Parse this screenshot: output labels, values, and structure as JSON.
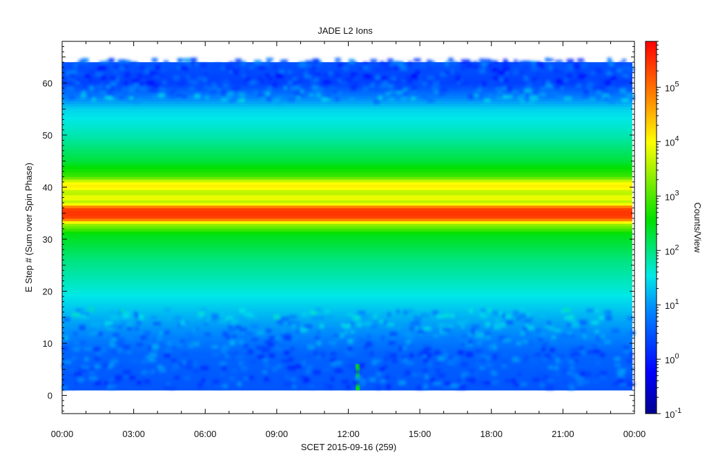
{
  "chart_data": {
    "type": "heatmap",
    "title": "JADE L2 Ions",
    "xlabel": "SCET 2015-09-16 (259)",
    "ylabel": "E Step # (Sum over Spin Phase)",
    "x_ticks": [
      "00:00",
      "03:00",
      "06:00",
      "09:00",
      "12:00",
      "15:00",
      "18:00",
      "21:00",
      "00:00"
    ],
    "x_range_hours": [
      0,
      24
    ],
    "y_ticks": [
      0,
      10,
      20,
      30,
      40,
      50,
      60
    ],
    "ylim": [
      -3.5,
      68
    ],
    "data_y_range": [
      1,
      64
    ],
    "colorbar": {
      "label": "Counts/View",
      "scale": "log",
      "range": [
        0.1,
        700000
      ],
      "ticks": [
        {
          "value": 0.1,
          "base": "10",
          "exp": "-1"
        },
        {
          "value": 1,
          "base": "10",
          "exp": "0"
        },
        {
          "value": 10,
          "base": "10",
          "exp": "1"
        },
        {
          "value": 100,
          "base": "10",
          "exp": "2"
        },
        {
          "value": 1000,
          "base": "10",
          "exp": "3"
        },
        {
          "value": 10000,
          "base": "10",
          "exp": "4"
        },
        {
          "value": 100000,
          "base": "10",
          "exp": "5"
        }
      ]
    },
    "energy_step_profile_counts": [
      {
        "e_step": 1,
        "counts": 3
      },
      {
        "e_step": 8,
        "counts": 4
      },
      {
        "e_step": 14,
        "counts": 12
      },
      {
        "e_step": 20,
        "counts": 40
      },
      {
        "e_step": 26,
        "counts": 100
      },
      {
        "e_step": 31,
        "counts": 300
      },
      {
        "e_step": 33,
        "counts": 3000
      },
      {
        "e_step": 34,
        "counts": 200000
      },
      {
        "e_step": 35,
        "counts": 300000
      },
      {
        "e_step": 36,
        "counts": 200000
      },
      {
        "e_step": 37,
        "counts": 3000
      },
      {
        "e_step": 38,
        "counts": 10000
      },
      {
        "e_step": 39,
        "counts": 3000
      },
      {
        "e_step": 40,
        "counts": 15000
      },
      {
        "e_step": 41,
        "counts": 8000
      },
      {
        "e_step": 42,
        "counts": 800
      },
      {
        "e_step": 45,
        "counts": 200
      },
      {
        "e_step": 50,
        "counts": 60
      },
      {
        "e_step": 55,
        "counts": 25
      },
      {
        "e_step": 57,
        "counts": 8
      },
      {
        "e_step": 60,
        "counts": 2
      },
      {
        "e_step": 64,
        "counts": 3
      }
    ],
    "annotations": [
      {
        "type": "enhanced_column",
        "time_hours": 12.4,
        "e_step_range": [
          1,
          6
        ],
        "counts": 300
      }
    ]
  }
}
